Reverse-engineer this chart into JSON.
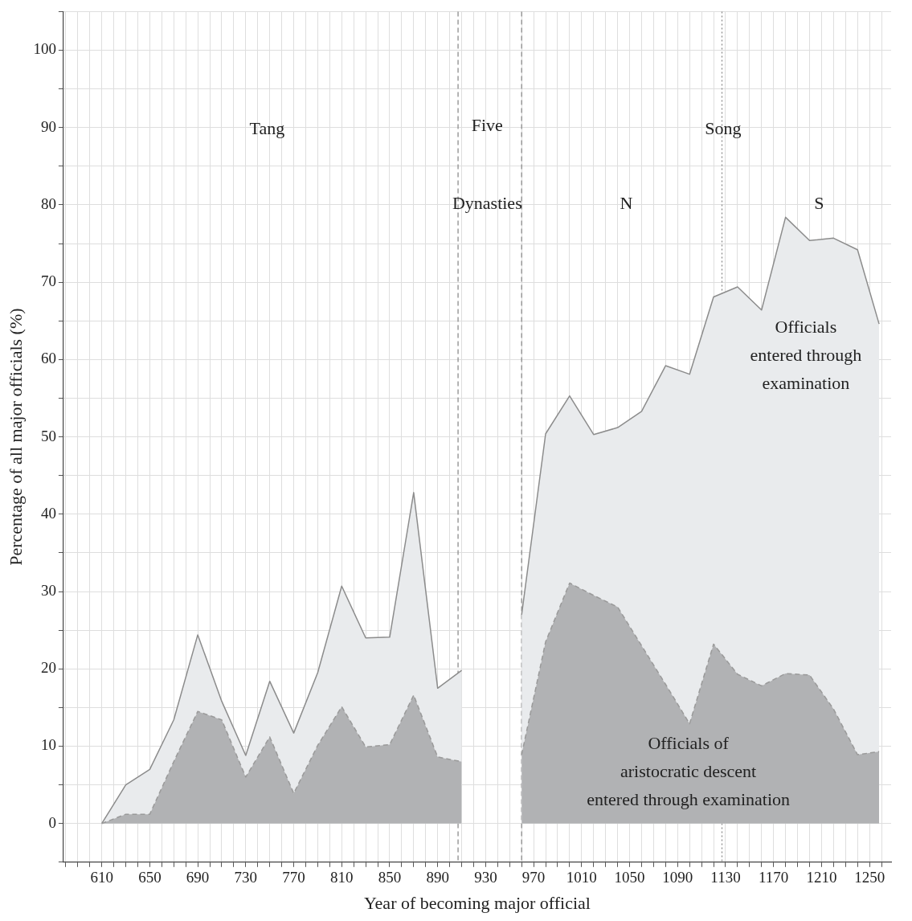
{
  "chart_data": {
    "type": "area",
    "xlabel": "Year of becoming major official",
    "ylabel": "Percentage of all major officials (%)",
    "series": [
      {
        "color": "#e9ebed",
        "line_style": "solid",
        "x": [
          610,
          630,
          650,
          670,
          690,
          710,
          730,
          750,
          770,
          790,
          810,
          830,
          850,
          870,
          890,
          910,
          935,
          960,
          980,
          1000,
          1020,
          1040,
          1060,
          1080,
          1100,
          1120,
          1140,
          1160,
          1180,
          1200,
          1220,
          1240,
          1258
        ],
        "values": [
          0,
          5,
          7,
          13.4,
          24.4,
          15.8,
          8.8,
          18.4,
          11.7,
          19.5,
          30.7,
          24,
          24.1,
          42.8,
          17.5,
          19.8,
          null,
          27,
          50.4,
          55.3,
          50.3,
          51.2,
          53.3,
          59.2,
          58.1,
          68.1,
          69.4,
          66.4,
          78.4,
          75.4,
          75.7,
          74.2,
          64.6
        ]
      },
      {
        "color": "#b1b2b4",
        "line_style": "dashed",
        "x": [
          610,
          630,
          650,
          670,
          690,
          710,
          730,
          750,
          770,
          790,
          810,
          830,
          850,
          870,
          890,
          910,
          935,
          960,
          980,
          1000,
          1020,
          1040,
          1060,
          1080,
          1100,
          1120,
          1140,
          1160,
          1180,
          1200,
          1220,
          1240,
          1258
        ],
        "values": [
          0,
          1.2,
          1.2,
          8,
          14.5,
          13.4,
          6,
          11.2,
          3.9,
          10.1,
          15.1,
          9.9,
          10.2,
          16.6,
          8.6,
          8,
          null,
          8.9,
          23.5,
          31.1,
          29.5,
          28,
          23,
          18,
          12.9,
          23.2,
          19.3,
          17.8,
          19.4,
          19.2,
          14.8,
          8.9,
          9.3
        ]
      }
    ],
    "xlim": [
      578,
      1268
    ],
    "ylim": [
      -5,
      105
    ],
    "xticks": [
      {
        "value": 580,
        "label": null
      },
      {
        "value": 590,
        "label": null
      },
      {
        "value": 600,
        "label": null
      },
      610,
      {
        "value": 620,
        "label": null
      },
      {
        "value": 630,
        "label": null
      },
      {
        "value": 640,
        "label": null
      },
      650,
      {
        "value": 660,
        "label": null
      },
      {
        "value": 670,
        "label": null
      },
      {
        "value": 680,
        "label": null
      },
      690,
      {
        "value": 700,
        "label": null
      },
      {
        "value": 710,
        "label": null
      },
      {
        "value": 720,
        "label": null
      },
      730,
      {
        "value": 740,
        "label": null
      },
      {
        "value": 750,
        "label": null
      },
      {
        "value": 760,
        "label": null
      },
      770,
      {
        "value": 780,
        "label": null
      },
      {
        "value": 790,
        "label": null
      },
      {
        "value": 800,
        "label": null
      },
      810,
      {
        "value": 820,
        "label": null
      },
      {
        "value": 830,
        "label": null
      },
      {
        "value": 840,
        "label": null
      },
      850,
      {
        "value": 860,
        "label": null
      },
      {
        "value": 870,
        "label": null
      },
      {
        "value": 880,
        "label": null
      },
      890,
      {
        "value": 900,
        "label": null
      },
      {
        "value": 910,
        "label": null
      },
      {
        "value": 920,
        "label": null
      },
      930,
      {
        "value": 940,
        "label": null
      },
      {
        "value": 950,
        "label": null
      },
      {
        "value": 960,
        "label": null
      },
      970,
      {
        "value": 980,
        "label": null
      },
      {
        "value": 990,
        "label": null
      },
      {
        "value": 1000,
        "label": null
      },
      1010,
      {
        "value": 1020,
        "label": null
      },
      {
        "value": 1030,
        "label": null
      },
      {
        "value": 1040,
        "label": null
      },
      1050,
      {
        "value": 1060,
        "label": null
      },
      {
        "value": 1070,
        "label": null
      },
      {
        "value": 1080,
        "label": null
      },
      1090,
      {
        "value": 1100,
        "label": null
      },
      {
        "value": 1110,
        "label": null
      },
      {
        "value": 1120,
        "label": null
      },
      1130,
      {
        "value": 1140,
        "label": null
      },
      {
        "value": 1150,
        "label": null
      },
      {
        "value": 1160,
        "label": null
      },
      1170,
      {
        "value": 1180,
        "label": null
      },
      {
        "value": 1190,
        "label": null
      },
      {
        "value": 1200,
        "label": null
      },
      1210,
      {
        "value": 1220,
        "label": null
      },
      {
        "value": 1230,
        "label": null
      },
      {
        "value": 1240,
        "label": null
      },
      1250,
      {
        "value": 1260,
        "label": null
      }
    ],
    "yticks": [
      {
        "value": -5,
        "label": null
      },
      0,
      {
        "value": 5,
        "label": null
      },
      10,
      {
        "value": 15,
        "label": null
      },
      20,
      {
        "value": 25,
        "label": null
      },
      30,
      {
        "value": 35,
        "label": null
      },
      40,
      {
        "value": 45,
        "label": null
      },
      50,
      {
        "value": 55,
        "label": null
      },
      60,
      {
        "value": 65,
        "label": null
      },
      70,
      {
        "value": 75,
        "label": null
      },
      80,
      {
        "value": 85,
        "label": null
      },
      90,
      {
        "value": 95,
        "label": null
      },
      100,
      {
        "value": 105,
        "label": null
      }
    ],
    "grid": true,
    "legend": false,
    "marker": "none",
    "ref_lines": [
      {
        "axis": "x",
        "value": 907,
        "line_style": "dashed",
        "color": "#8c8c8c"
      },
      {
        "axis": "x",
        "value": 960,
        "line_style": "dashed",
        "color": "#8c8c8c"
      },
      {
        "axis": "x",
        "value": 1127,
        "line_style": "dotted",
        "color": "#8c8c8c"
      }
    ],
    "annotations": [
      "Tang",
      "Five",
      "Dynasties",
      "Song",
      "N",
      "S",
      "Officials\nentered through\nexamination",
      "Officials of\naristocratic descent\nentered through examination"
    ]
  }
}
